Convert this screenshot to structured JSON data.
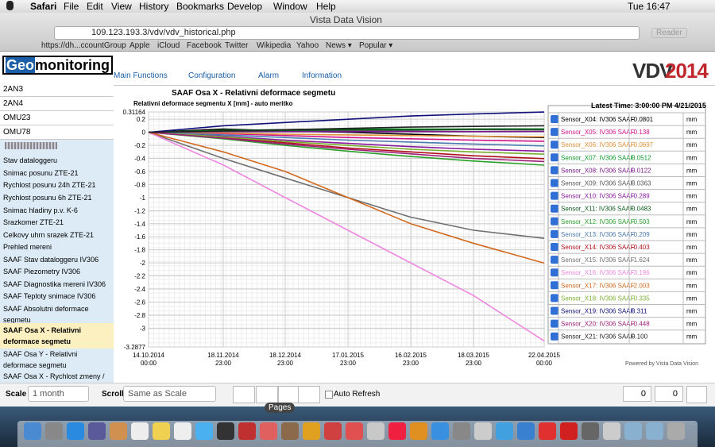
{
  "menubar": {
    "app": "Safari",
    "items": [
      "File",
      "Edit",
      "View",
      "History",
      "Bookmarks",
      "Develop",
      "Window",
      "Help"
    ],
    "clock": "Tue 16:47"
  },
  "browser": {
    "title": "Vista Data Vision",
    "url": "109.123.193.3/vdv/vdv_historical.php",
    "reader": "Reader",
    "bookmarks": [
      "https://dh...ccountGroup",
      "Apple",
      "iCloud",
      "Facebook",
      "Twitter",
      "Wikipedia",
      "Yahoo",
      "News ▾",
      "Popular ▾"
    ]
  },
  "header": {
    "logo_a": "Geo",
    "logo_b": "monitoring",
    "nav": [
      "Main Functions",
      "Configuration",
      "Alarm",
      "Information"
    ],
    "brand_a": "VDV",
    "brand_b": "2014"
  },
  "sidebar": {
    "items": [
      "2AN3",
      "2AN4",
      "OMU23",
      "OMU78",
      "Stav dataloggeru",
      "Snimac posunu ZTE-21",
      "Rychlost posunu 24h ZTE-21",
      "Rychlost posunu 6h ZTE-21",
      "Snimac hladiny p.v. K-6",
      "Srazkomer ZTE-21",
      "Celkovy uhrn srazek ZTE-21",
      "Prehled mereni",
      "SAAF Stav dataloggeru IV306",
      "SAAF Piezometry IV306",
      "SAAF Diagnostika mereni IV306",
      "SAAF Teploty snimace IV306",
      "SAAF Absolutni deformace segmetu",
      "SAAF Osa X - Relativni deformace segmetu",
      "SAAF Osa Y - Relativni deformace segmetu",
      "SAAF Osa X - Rychlost zmeny /"
    ],
    "selected": 17
  },
  "page": {
    "title": "SAAF Osa X - Relativni deformace segmetu",
    "latest": "Latest Time: 3:00:00 PM 4/21/2015",
    "powered": "Powered by Vista Data Vision"
  },
  "chart_data": {
    "type": "line",
    "title": "Relativni deformace segmentu X [mm] - auto meritko",
    "unit": "mm",
    "categories": [
      "14.10.2014 00:00",
      "18.11.2014 23:00",
      "18.12.2014 23:00",
      "17.01.2015 23:00",
      "16.02.2015 23:00",
      "18.03.2015 23:00",
      "22.04.2015 00:00"
    ],
    "ylim": [
      -3.2877,
      0.31164
    ],
    "yticks": [
      0.31164,
      0.2,
      0,
      -0.2,
      -0.4,
      -0.6,
      -0.8,
      -1,
      -1.2,
      -1.4,
      -1.6,
      -1.8,
      -2,
      -2.2,
      -2.4,
      -2.6,
      -2.8,
      -3,
      -3.2877
    ],
    "grid": true,
    "series": [
      {
        "name": "Sensor_X04: IV306 SAAF",
        "color": "#000000",
        "values": [
          0,
          0.05,
          0.02,
          0,
          -0.03,
          -0.06,
          -0.0801
        ],
        "latest": "-0.0801"
      },
      {
        "name": "Sensor_X05: IV306 SAAF",
        "color": "#d0138a",
        "values": [
          0,
          -0.02,
          -0.05,
          -0.08,
          -0.1,
          -0.12,
          -0.138
        ],
        "latest": "-0.138"
      },
      {
        "name": "Sensor_X06: IV306 SAAF",
        "color": "#e0913a",
        "values": [
          0,
          -0.01,
          -0.03,
          -0.04,
          -0.05,
          -0.06,
          -0.0697
        ],
        "latest": "-0.0697"
      },
      {
        "name": "Sensor_X07: IV306 SAAF",
        "color": "#0a9a2a",
        "values": [
          0,
          0.03,
          0.04,
          0.05,
          0.05,
          0.05,
          0.0512
        ],
        "latest": "0.0512"
      },
      {
        "name": "Sensor_X08: IV306 SAAF",
        "color": "#7a1a8a",
        "values": [
          0,
          0.01,
          0.01,
          0.01,
          0.01,
          0.01,
          0.0122
        ],
        "latest": "0.0122"
      },
      {
        "name": "Sensor_X09: IV306 SAAF",
        "color": "#555555",
        "values": [
          0,
          0.02,
          0.03,
          0.03,
          0.03,
          0.04,
          0.0363
        ],
        "latest": "0.0363"
      },
      {
        "name": "Sensor_X10: IV306 SAAF",
        "color": "#8a1aa0",
        "values": [
          0,
          -0.06,
          -0.12,
          -0.17,
          -0.22,
          -0.26,
          -0.289
        ],
        "latest": "-0.289"
      },
      {
        "name": "Sensor_X11: IV306 SAAF",
        "color": "#0a5a1a",
        "values": [
          0,
          0.02,
          0.03,
          0.04,
          0.04,
          0.05,
          0.0483
        ],
        "latest": "0.0483"
      },
      {
        "name": "Sensor_X12: IV306 SAAF",
        "color": "#2aa02a",
        "values": [
          0,
          -0.1,
          -0.2,
          -0.29,
          -0.37,
          -0.44,
          -0.503
        ],
        "latest": "-0.503"
      },
      {
        "name": "Sensor_X13: IV306 SAAF",
        "color": "#4a7ab0",
        "values": [
          0,
          -0.04,
          -0.08,
          -0.12,
          -0.15,
          -0.18,
          -0.209
        ],
        "latest": "-0.209"
      },
      {
        "name": "Sensor_X14: IV306 SAAF",
        "color": "#b0101a",
        "values": [
          0,
          -0.08,
          -0.16,
          -0.24,
          -0.3,
          -0.36,
          -0.403
        ],
        "latest": "-0.403"
      },
      {
        "name": "Sensor_X15: IV306 SAAF",
        "color": "#707070",
        "values": [
          0,
          -0.4,
          -0.7,
          -1,
          -1.3,
          -1.5,
          -1.624
        ],
        "latest": "-1.624"
      },
      {
        "name": "Sensor_X16: IV306 SAAF",
        "color": "#ee88e0",
        "values": [
          0,
          -0.5,
          -1,
          -1.5,
          -2,
          -2.5,
          -3.196
        ],
        "latest": "-3.196"
      },
      {
        "name": "Sensor_X17: IV306 SAAF",
        "color": "#d2691e",
        "values": [
          0,
          -0.3,
          -0.6,
          -1,
          -1.4,
          -1.7,
          -2.003
        ],
        "latest": "-2.003"
      },
      {
        "name": "Sensor_X18: IV306 SAAF",
        "color": "#7ab030",
        "values": [
          0,
          -0.07,
          -0.14,
          -0.2,
          -0.26,
          -0.3,
          -0.335
        ],
        "latest": "-0.335"
      },
      {
        "name": "Sensor_X19: IV306 SAAF",
        "color": "#10107a",
        "values": [
          0,
          0.1,
          0.15,
          0.2,
          0.25,
          0.28,
          0.311
        ],
        "latest": "0.311"
      },
      {
        "name": "Sensor_X20: IV306 SAAF",
        "color": "#a0207a",
        "values": [
          0,
          -0.09,
          -0.18,
          -0.26,
          -0.33,
          -0.4,
          -0.448
        ],
        "latest": "-0.448"
      },
      {
        "name": "Sensor_X21: IV306 SAAF",
        "color": "#222222",
        "values": [
          0,
          0.02,
          0.04,
          0.06,
          0.08,
          0.09,
          0.1
        ],
        "latest": "0.100"
      }
    ]
  },
  "toolbar": {
    "scale_label": "Scale",
    "scale": "1 month",
    "scroll_label": "Scroll",
    "scroll": "Same as Scale",
    "auto_refresh": "Auto Refresh",
    "warnings": "0",
    "messages": "0",
    "tooltip": "Pages"
  }
}
